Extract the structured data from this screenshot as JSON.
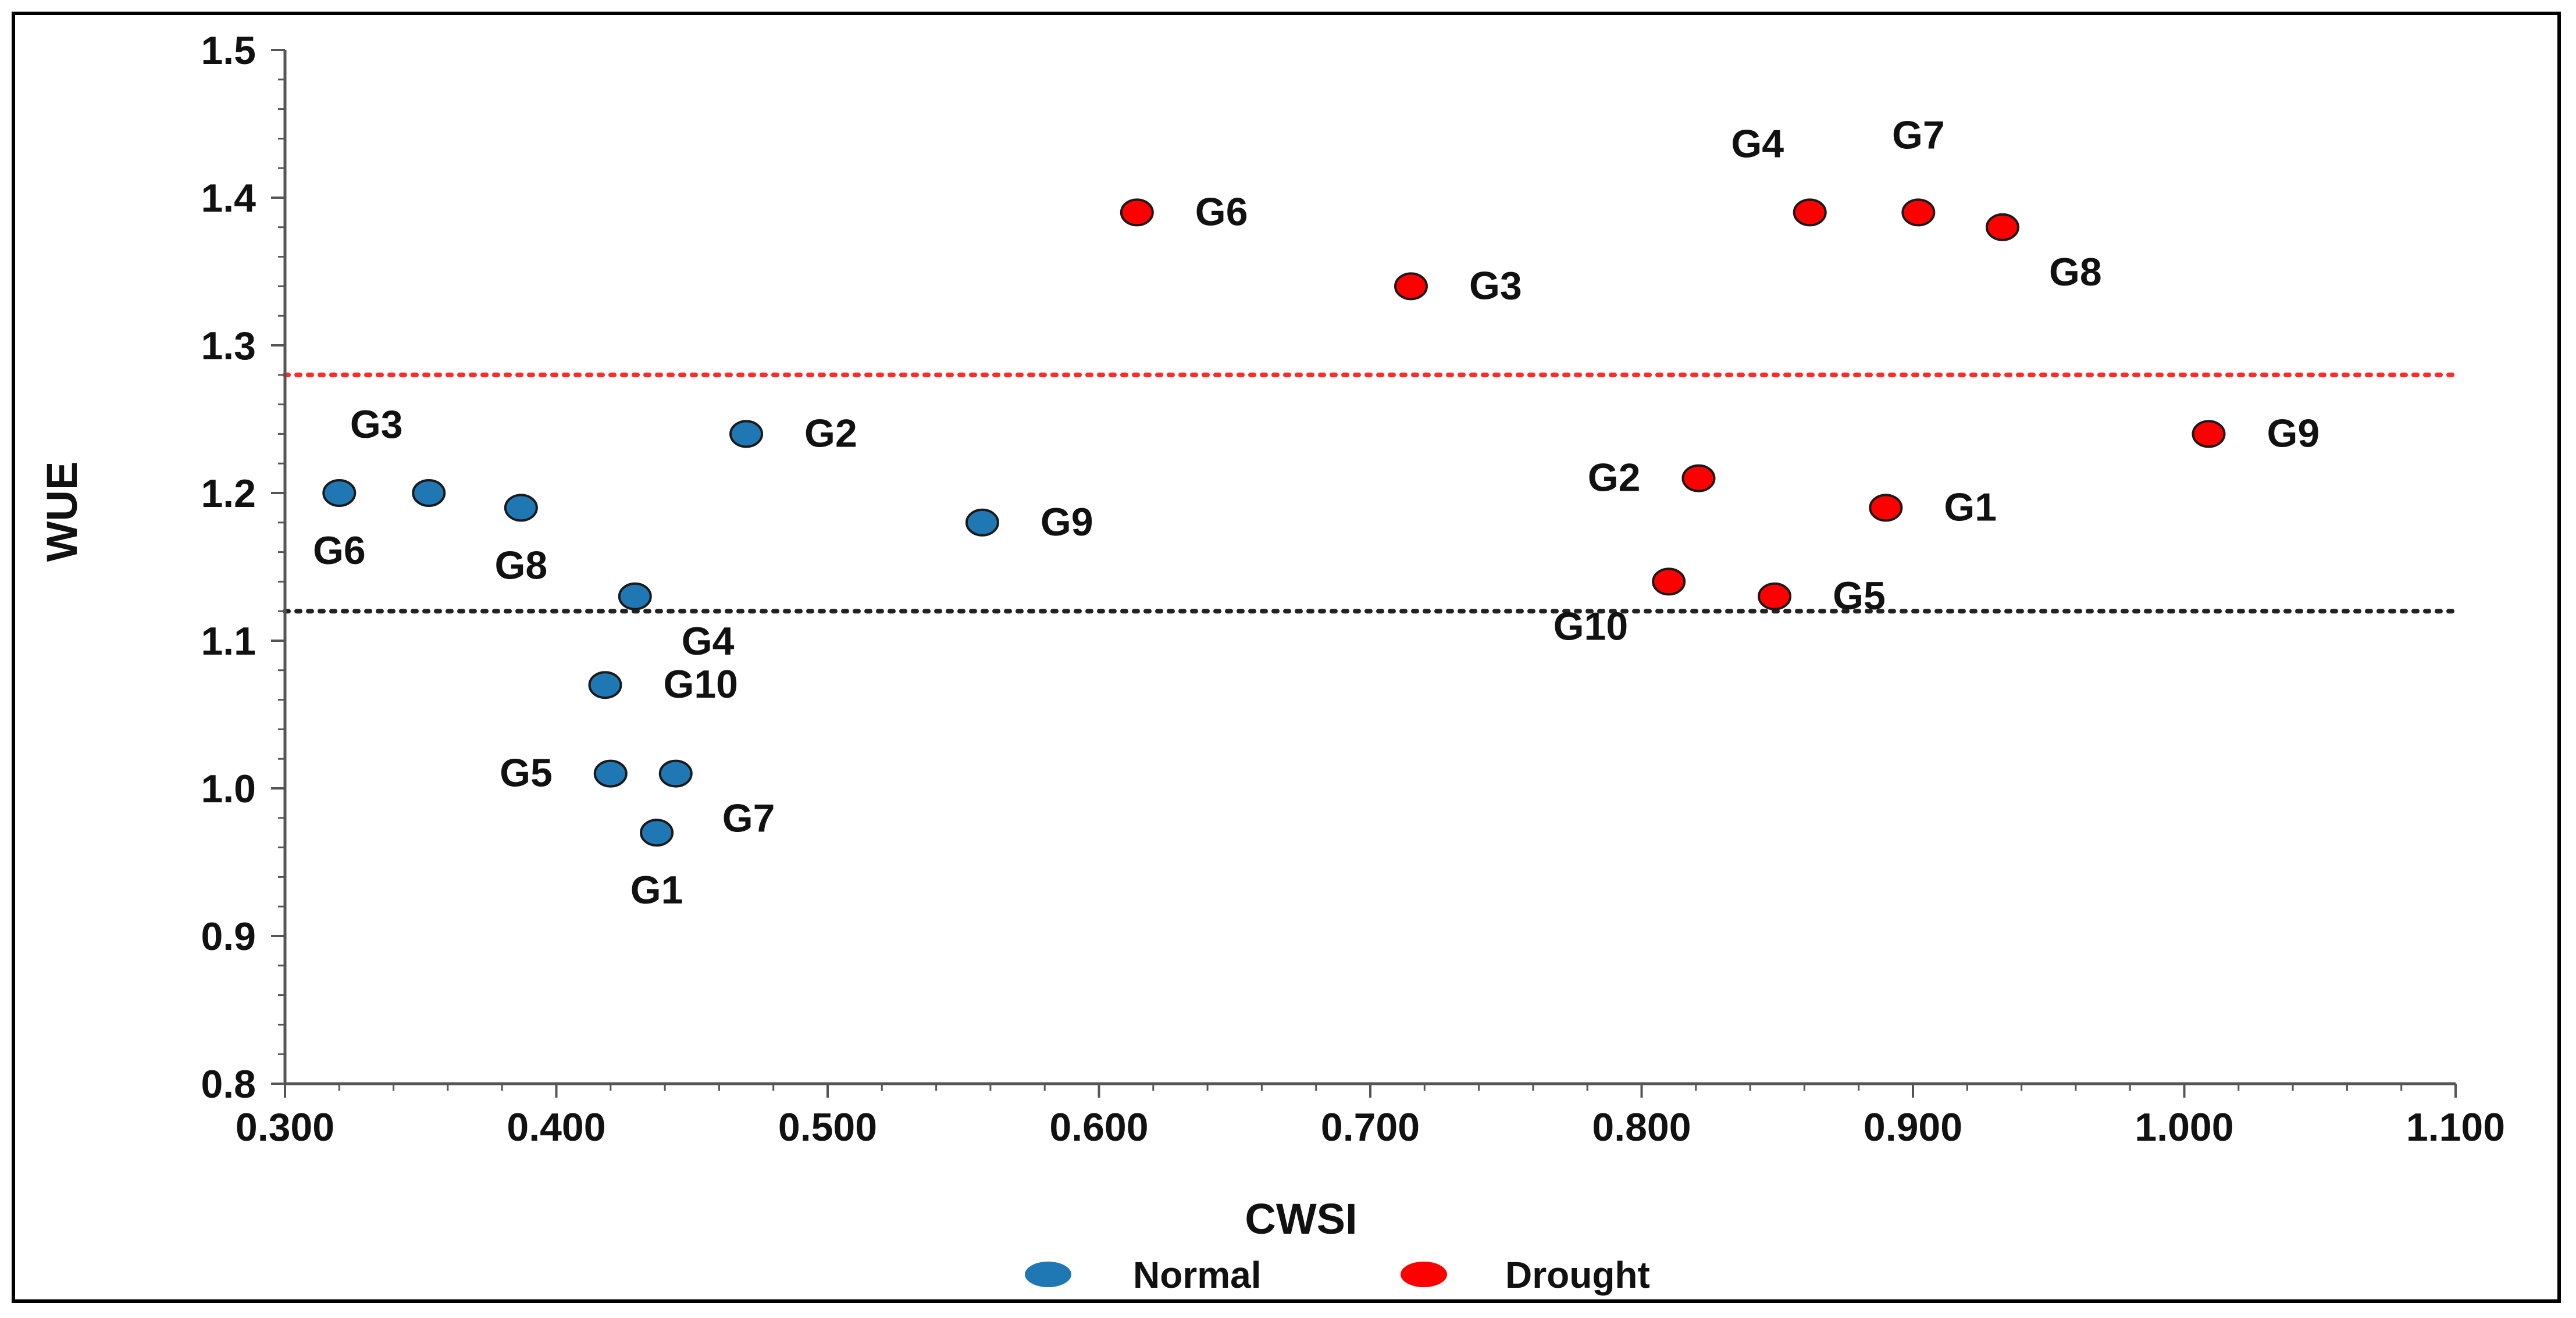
{
  "chart_data": {
    "type": "scatter",
    "title": "",
    "xlabel": "CWSI",
    "ylabel": "WUE",
    "xlim": [
      0.3,
      1.1
    ],
    "ylim": [
      0.8,
      1.5
    ],
    "x_ticks": [
      "0.300",
      "0.400",
      "0.500",
      "0.600",
      "0.700",
      "0.800",
      "0.900",
      "1.000",
      "1.100"
    ],
    "y_ticks": [
      "0.8",
      "0.9",
      "1.0",
      "1.1",
      "1.2",
      "1.3",
      "1.4",
      "1.5"
    ],
    "grid": false,
    "legend_position": "bottom-center",
    "reference_lines": [
      {
        "name": "drought-threshold",
        "y": 1.28,
        "color": "#ff2a2a",
        "style": "dotted"
      },
      {
        "name": "normal-threshold",
        "y": 1.12,
        "color": "#222222",
        "style": "dotted"
      }
    ],
    "series": [
      {
        "name": "Normal",
        "color": "#1f77b4",
        "points": [
          {
            "label": "G1",
            "x": 0.437,
            "y": 0.97,
            "label_pos": "below"
          },
          {
            "label": "G2",
            "x": 0.47,
            "y": 1.24,
            "label_pos": "right"
          },
          {
            "label": "G3",
            "x": 0.353,
            "y": 1.2,
            "label_pos": "above-left"
          },
          {
            "label": "G4",
            "x": 0.429,
            "y": 1.13,
            "label_pos": "below-right"
          },
          {
            "label": "G5",
            "x": 0.42,
            "y": 1.01,
            "label_pos": "left"
          },
          {
            "label": "G6",
            "x": 0.32,
            "y": 1.2,
            "label_pos": "below"
          },
          {
            "label": "G7",
            "x": 0.444,
            "y": 1.01,
            "label_pos": "below-right"
          },
          {
            "label": "G8",
            "x": 0.387,
            "y": 1.19,
            "label_pos": "below"
          },
          {
            "label": "G9",
            "x": 0.557,
            "y": 1.18,
            "label_pos": "right"
          },
          {
            "label": "G10",
            "x": 0.418,
            "y": 1.07,
            "label_pos": "right"
          }
        ]
      },
      {
        "name": "Drought",
        "color": "#ff0000",
        "points": [
          {
            "label": "G1",
            "x": 0.89,
            "y": 1.19,
            "label_pos": "right"
          },
          {
            "label": "G2",
            "x": 0.821,
            "y": 1.21,
            "label_pos": "left"
          },
          {
            "label": "G3",
            "x": 0.715,
            "y": 1.34,
            "label_pos": "right"
          },
          {
            "label": "G4",
            "x": 0.862,
            "y": 1.39,
            "label_pos": "above-left"
          },
          {
            "label": "G5",
            "x": 0.849,
            "y": 1.13,
            "label_pos": "right"
          },
          {
            "label": "G6",
            "x": 0.614,
            "y": 1.39,
            "label_pos": "right"
          },
          {
            "label": "G7",
            "x": 0.902,
            "y": 1.39,
            "label_pos": "above"
          },
          {
            "label": "G8",
            "x": 0.933,
            "y": 1.38,
            "label_pos": "below-right"
          },
          {
            "label": "G9",
            "x": 1.009,
            "y": 1.24,
            "label_pos": "right"
          },
          {
            "label": "G10",
            "x": 0.81,
            "y": 1.14,
            "label_pos": "below-left"
          }
        ]
      }
    ]
  }
}
